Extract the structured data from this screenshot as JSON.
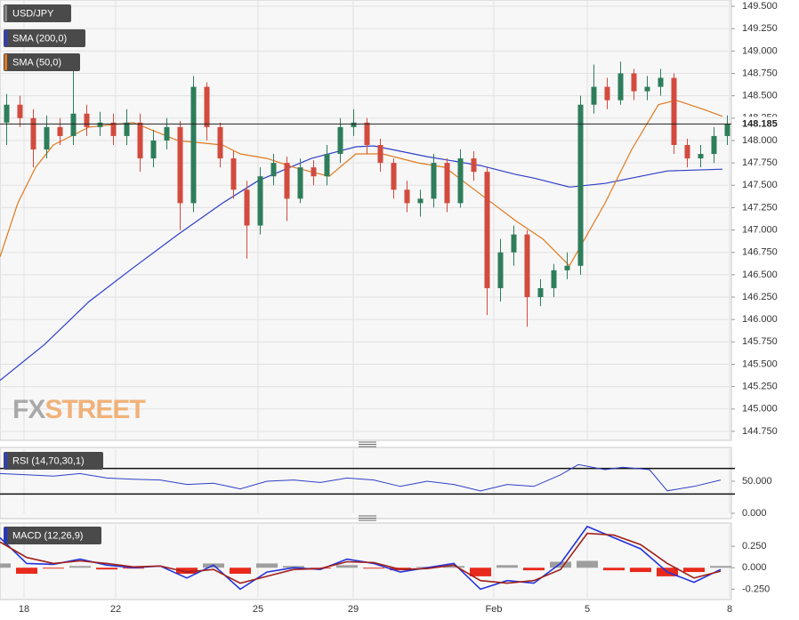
{
  "chart_data": [
    {
      "type": "candlestick",
      "title": "USD/JPY",
      "up_color": "#2e7d5b",
      "down_color": "#d24b3e",
      "xlim": [
        0,
        164
      ],
      "xticks": [
        {
          "value": 5.4,
          "label": "18"
        },
        {
          "value": 26,
          "label": "22"
        },
        {
          "value": 58,
          "label": "25"
        },
        {
          "value": 79.4,
          "label": "29"
        },
        {
          "value": 111,
          "label": "Feb"
        },
        {
          "value": 132,
          "label": "5"
        },
        {
          "value": 164,
          "label": "8"
        }
      ],
      "ylim": [
        144.65,
        149.57
      ],
      "yticks": [
        {
          "value": 149.5,
          "label": "149.500"
        },
        {
          "value": 149.25,
          "label": "149.250"
        },
        {
          "value": 149,
          "label": "149.000"
        },
        {
          "value": 148.75,
          "label": "148.750"
        },
        {
          "value": 148.5,
          "label": "148.500"
        },
        {
          "value": 148.25,
          "label": "148.250"
        },
        {
          "value": 148,
          "label": "148.000"
        },
        {
          "value": 147.75,
          "label": "147.750"
        },
        {
          "value": 147.5,
          "label": "147.500"
        },
        {
          "value": 147.25,
          "label": "147.250"
        },
        {
          "value": 147,
          "label": "147.000"
        },
        {
          "value": 146.75,
          "label": "146.750"
        },
        {
          "value": 146.5,
          "label": "146.500"
        },
        {
          "value": 146.25,
          "label": "146.250"
        },
        {
          "value": 146,
          "label": "146.000"
        },
        {
          "value": 145.75,
          "label": "145.750"
        },
        {
          "value": 145.5,
          "label": "145.500"
        },
        {
          "value": 145.25,
          "label": "145.250"
        },
        {
          "value": 145,
          "label": "145.000"
        },
        {
          "value": 144.75,
          "label": "144.750"
        }
      ],
      "grid": true,
      "x": [
        1.5,
        4.5,
        7.5,
        10.5,
        13.5,
        16.5,
        19.5,
        22.5,
        25.5,
        28.5,
        31.5,
        34.5,
        37.5,
        40.5,
        43.5,
        46.5,
        49.5,
        52.5,
        55.5,
        58.5,
        61.5,
        64.5,
        67.5,
        70.5,
        73.5,
        76.5,
        79.5,
        82.5,
        85.5,
        88.5,
        91.5,
        94.5,
        97.5,
        100.5,
        103.5,
        106.5,
        109.5,
        112.5,
        115.5,
        118.5,
        121.5,
        124.5,
        127.5,
        130.5,
        133.5,
        136.5,
        139.5,
        142.5,
        145.5,
        148.5,
        151.5,
        154.5,
        157.5,
        160.5,
        163.5
      ],
      "open": [
        148.2,
        148.4,
        148.25,
        147.9,
        148.15,
        148.05,
        148.3,
        148.15,
        148.2,
        148.05,
        148.2,
        147.8,
        148,
        148.15,
        147.3,
        148.6,
        148.15,
        147.8,
        147.45,
        147.05,
        147.6,
        147.75,
        147.35,
        147.7,
        147.6,
        147.85,
        148.15,
        148.2,
        147.95,
        147.75,
        147.45,
        147.3,
        147.35,
        147.75,
        147.3,
        147.8,
        147.65,
        146.35,
        146.75,
        146.95,
        146.25,
        146.35,
        146.55,
        146.6,
        148.4,
        148.6,
        148.45,
        148.75,
        148.55,
        148.6,
        148.7,
        147.95,
        147.8,
        147.85,
        148.05
      ],
      "high": [
        148.52,
        148.5,
        148.35,
        148.28,
        148.25,
        148.8,
        148.4,
        148.32,
        148.3,
        148.35,
        148.3,
        148.12,
        148.25,
        148.22,
        148.72,
        148.65,
        148.2,
        147.88,
        147.55,
        147.7,
        147.85,
        147.82,
        147.8,
        147.78,
        147.95,
        148.25,
        148.35,
        148.25,
        148.02,
        147.8,
        147.55,
        147.45,
        147.85,
        147.8,
        147.9,
        147.88,
        147.7,
        146.9,
        147.05,
        147,
        146.45,
        146.62,
        146.75,
        148.5,
        148.85,
        148.7,
        148.88,
        148.8,
        148.72,
        148.8,
        148.75,
        148.02,
        147.95,
        148.15,
        148.28
      ],
      "low": [
        147.95,
        148.15,
        147.7,
        147.8,
        147.95,
        147.95,
        148.05,
        148.05,
        147.95,
        147.95,
        147.65,
        147.7,
        147.9,
        147,
        147.2,
        148,
        147.7,
        147.35,
        146.68,
        146.95,
        147.5,
        147.1,
        147.3,
        147.5,
        147.5,
        147.75,
        148.05,
        147.85,
        147.65,
        147.35,
        147.2,
        147.15,
        147.25,
        147.2,
        147.25,
        147.55,
        146.05,
        146.2,
        146.6,
        145.92,
        146.15,
        146.25,
        146.45,
        146.5,
        148.3,
        148.35,
        148.4,
        148.45,
        148.45,
        148.5,
        147.85,
        147.7,
        147.7,
        147.75,
        147.95
      ],
      "close": [
        148.4,
        148.25,
        147.9,
        148.15,
        148.05,
        148.3,
        148.15,
        148.2,
        148.05,
        148.2,
        147.8,
        148,
        148.15,
        147.3,
        148.6,
        148.15,
        147.8,
        147.45,
        147.05,
        147.6,
        147.75,
        147.35,
        147.7,
        147.6,
        147.85,
        148.15,
        148.2,
        147.95,
        147.75,
        147.45,
        147.3,
        147.35,
        147.75,
        147.3,
        147.8,
        147.65,
        146.35,
        146.75,
        146.95,
        146.25,
        146.35,
        146.55,
        146.6,
        148.4,
        148.6,
        148.45,
        148.75,
        148.55,
        148.6,
        148.7,
        147.95,
        147.8,
        147.85,
        148.05,
        148.185
      ],
      "last_price": 148.185,
      "series": [
        {
          "name": "SMA (200,0)",
          "color": "#2f3fc8",
          "x": [
            0,
            10,
            20,
            30,
            40,
            50,
            58,
            70,
            80,
            84,
            90,
            96,
            108,
            116,
            120,
            128,
            136,
            144,
            150,
            162.4
          ],
          "values": [
            145.32,
            145.72,
            146.2,
            146.58,
            146.95,
            147.3,
            147.55,
            147.8,
            147.93,
            147.94,
            147.88,
            147.82,
            147.72,
            147.62,
            147.58,
            147.48,
            147.52,
            147.6,
            147.66,
            147.68
          ]
        },
        {
          "name": "SMA (50,0)",
          "color": "#e07a1f",
          "x": [
            0,
            4,
            8,
            12,
            20,
            30,
            40,
            50,
            54,
            60,
            66,
            74,
            80,
            86,
            94,
            100,
            108,
            116,
            122,
            128,
            136,
            142,
            148,
            152,
            158,
            162.4
          ],
          "values": [
            146.7,
            147.3,
            147.7,
            147.95,
            148.15,
            148.2,
            148,
            147.95,
            147.85,
            147.8,
            147.7,
            147.6,
            147.85,
            147.85,
            147.75,
            147.7,
            147.4,
            147.1,
            146.9,
            146.6,
            147.3,
            147.9,
            148.4,
            148.45,
            148.35,
            148.27
          ]
        }
      ],
      "watermark": [
        "FX",
        "STREET"
      ]
    },
    {
      "type": "line",
      "title": "RSI (14,70,30,1)",
      "ylim": [
        0,
        100
      ],
      "yticks": [
        {
          "value": 0,
          "label": "0.000"
        },
        {
          "value": 50,
          "label": "50.000"
        }
      ],
      "levels": [
        70,
        30
      ],
      "x": [
        0,
        6,
        12,
        18,
        24,
        30,
        36,
        42,
        48,
        54,
        60,
        66,
        72,
        78,
        84,
        90,
        96,
        102,
        108,
        114,
        120,
        126,
        130,
        136,
        140,
        146,
        150,
        156,
        162
      ],
      "series": [
        {
          "color": "#2f3fc8",
          "values": [
            62,
            60,
            58,
            62,
            55,
            53,
            52,
            45,
            47,
            38,
            50,
            52,
            48,
            55,
            52,
            42,
            50,
            45,
            35,
            45,
            42,
            60,
            76,
            68,
            72,
            68,
            35,
            42,
            52
          ]
        }
      ]
    },
    {
      "type": "macd",
      "title": "MACD (12,26,9)",
      "ylim": [
        -0.35,
        0.5
      ],
      "yticks": [
        {
          "value": 0.25,
          "label": "0.250"
        },
        {
          "value": 0,
          "label": "0.000"
        },
        {
          "value": -0.25,
          "label": "-0.250"
        }
      ],
      "x": [
        0,
        6,
        12,
        18,
        24,
        30,
        36,
        42,
        48,
        54,
        60,
        66,
        72,
        78,
        84,
        90,
        96,
        102,
        108,
        114,
        120,
        126,
        132,
        138,
        144,
        150,
        156,
        162
      ],
      "series": [
        {
          "type": "bar",
          "color": "#9e9e9e",
          "negative_color": "#e8291c",
          "values": [
            0.05,
            -0.07,
            -0.01,
            0.02,
            -0.02,
            -0.01,
            0,
            -0.07,
            0.05,
            -0.07,
            0.05,
            0.02,
            -0.01,
            0.03,
            -0.01,
            -0.03,
            0.01,
            0.02,
            -0.1,
            0.03,
            -0.03,
            0.07,
            0.08,
            -0.03,
            -0.05,
            -0.1,
            -0.05,
            0.02
          ]
        },
        {
          "type": "line",
          "color": "#2233dd",
          "values": [
            0.35,
            0.05,
            0.04,
            0.1,
            0.03,
            0,
            0.02,
            -0.12,
            0.03,
            -0.25,
            -0.05,
            0,
            -0.02,
            0.1,
            0.05,
            -0.05,
            0,
            0.05,
            -0.25,
            -0.15,
            -0.18,
            0.05,
            0.48,
            0.35,
            0.22,
            -0.05,
            -0.17,
            -0.02
          ]
        },
        {
          "type": "line",
          "color": "#a0201a",
          "values": [
            0.3,
            0.12,
            0.05,
            0.08,
            0.05,
            0.01,
            0.02,
            -0.05,
            -0.02,
            -0.18,
            -0.1,
            -0.02,
            -0.01,
            0.07,
            0.06,
            -0.02,
            -0.01,
            0.03,
            -0.15,
            -0.18,
            -0.15,
            -0.02,
            0.4,
            0.38,
            0.27,
            0.05,
            -0.12,
            -0.04
          ]
        }
      ]
    }
  ]
}
